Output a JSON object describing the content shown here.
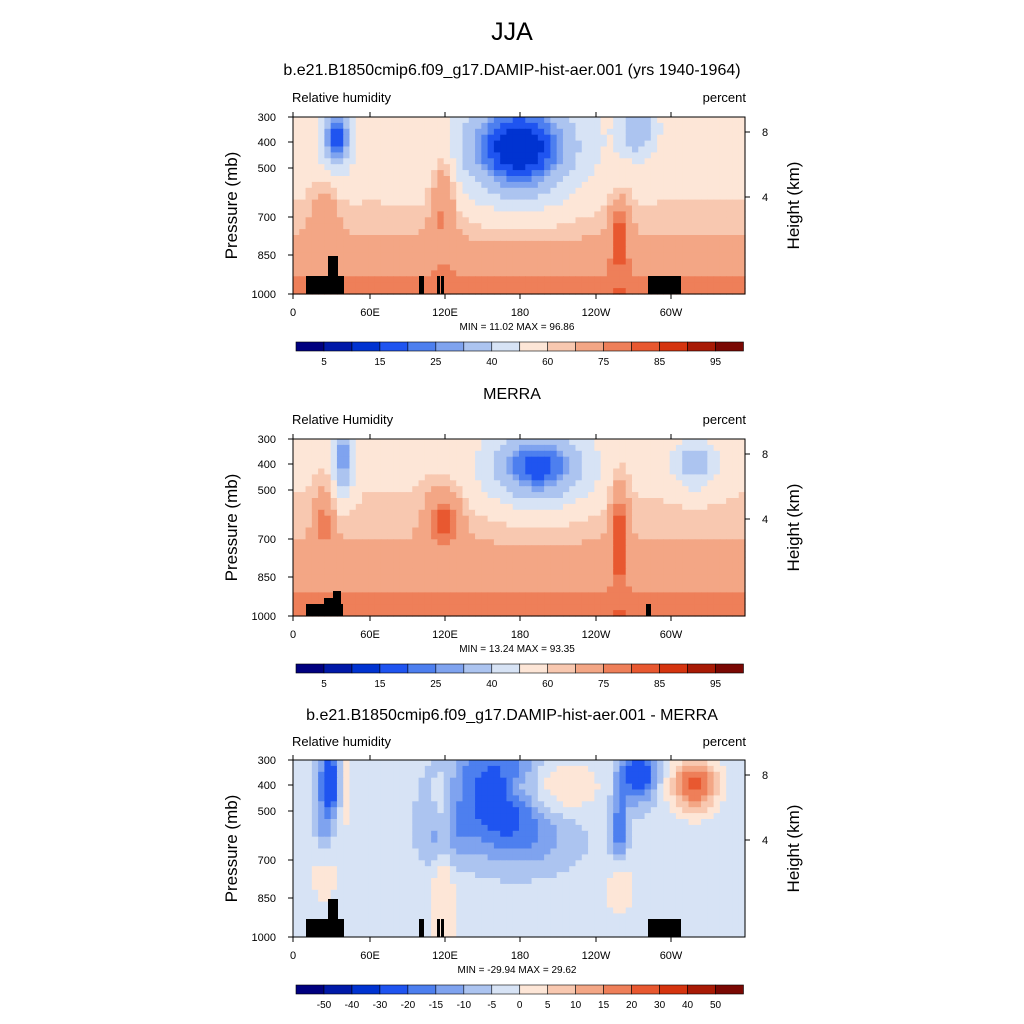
{
  "title": "JJA",
  "chart_data": [
    {
      "type": "heatmap",
      "title": "b.e21.B1850cmip6.f09_g17.DAMIP-hist-aer.001 (yrs 1940-1964)",
      "left_label": "Relative humidity",
      "right_label": "percent",
      "ylabel": "Pressure (mb)",
      "ylabel_right": "Height (km)",
      "x_ticks": [
        "0",
        "60E",
        "120E",
        "180",
        "120W",
        "60W"
      ],
      "y_ticks": [
        "300",
        "400",
        "500",
        "700",
        "850",
        "1000"
      ],
      "y2_ticks": [
        "8",
        "4"
      ],
      "stats_text": "MIN =  11.02  MAX =  96.86",
      "colorbar_labels": [
        "5",
        "15",
        "25",
        "40",
        "60",
        "75",
        "85",
        "95"
      ],
      "min": 11.02,
      "max": 96.86
    },
    {
      "type": "heatmap",
      "title": "MERRA",
      "left_label": "Relative Humidity",
      "right_label": "percent",
      "ylabel": "Pressure (mb)",
      "ylabel_right": "Height (km)",
      "x_ticks": [
        "0",
        "60E",
        "120E",
        "180",
        "120W",
        "60W"
      ],
      "y_ticks": [
        "300",
        "400",
        "500",
        "700",
        "850",
        "1000"
      ],
      "y2_ticks": [
        "8",
        "4"
      ],
      "stats_text": "MIN =  13.24  MAX =  93.35",
      "colorbar_labels": [
        "5",
        "15",
        "25",
        "40",
        "60",
        "75",
        "85",
        "95"
      ],
      "min": 13.24,
      "max": 93.35
    },
    {
      "type": "heatmap",
      "title": "b.e21.B1850cmip6.f09_g17.DAMIP-hist-aer.001 - MERRA",
      "left_label": "Relative humidity",
      "right_label": "percent",
      "ylabel": "Pressure (mb)",
      "ylabel_right": "Height (km)",
      "x_ticks": [
        "0",
        "60E",
        "120E",
        "180",
        "120W",
        "60W"
      ],
      "y_ticks": [
        "300",
        "400",
        "500",
        "700",
        "850",
        "1000"
      ],
      "y2_ticks": [
        "8",
        "4"
      ],
      "stats_text": "MIN = -29.94  MAX =  29.62",
      "colorbar_labels": [
        "-50",
        "-40",
        "-30",
        "-20",
        "-15",
        "-10",
        "-5",
        "0",
        "5",
        "10",
        "15",
        "20",
        "30",
        "40",
        "50"
      ],
      "min": -29.94,
      "max": 29.62
    }
  ],
  "colors": {
    "abs_scale": [
      "#00007f",
      "#0019a8",
      "#0033d1",
      "#1f54f0",
      "#4d7fef",
      "#7fa3ef",
      "#acc4f0",
      "#d7e3f5",
      "#fde6d7",
      "#f8c8b0",
      "#f3a685",
      "#ee7f59",
      "#e85830",
      "#d5340f",
      "#a81a05",
      "#7a0803"
    ],
    "diff_scale": [
      "#00007f",
      "#0019a8",
      "#0033d1",
      "#1f54f0",
      "#4d7fef",
      "#7fa3ef",
      "#acc4f0",
      "#d7e3f5",
      "#fde6d7",
      "#f8c8b0",
      "#f3a685",
      "#ee7f59",
      "#e85830",
      "#d5340f",
      "#a81a05",
      "#7a0803"
    ],
    "topography": "#000000"
  }
}
